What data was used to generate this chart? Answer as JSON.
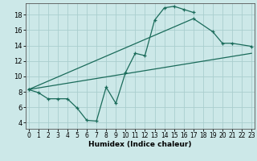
{
  "title": "",
  "xlabel": "Humidex (Indice chaleur)",
  "bg_color": "#cce8e8",
  "grid_color": "#aacece",
  "line_color": "#1a6b5a",
  "xticks": [
    0,
    1,
    2,
    3,
    4,
    5,
    6,
    7,
    8,
    9,
    10,
    11,
    12,
    13,
    14,
    15,
    16,
    17,
    18,
    19,
    20,
    21,
    22,
    23
  ],
  "yticks": [
    4,
    6,
    8,
    10,
    12,
    14,
    16,
    18
  ],
  "xlim": [
    -0.3,
    23.3
  ],
  "ylim": [
    3.2,
    19.5
  ],
  "line1_x": [
    0,
    1,
    2,
    3,
    4,
    5,
    6,
    7,
    8,
    9,
    10,
    11,
    12,
    13,
    14,
    15,
    16,
    17
  ],
  "line1_y": [
    8.3,
    7.9,
    7.1,
    7.1,
    7.1,
    5.9,
    4.3,
    4.2,
    8.6,
    6.5,
    10.5,
    13.0,
    12.7,
    17.3,
    18.9,
    19.1,
    18.7,
    18.3
  ],
  "line2_x": [
    0,
    17,
    19,
    20,
    21,
    23
  ],
  "line2_y": [
    8.3,
    17.5,
    15.8,
    14.3,
    14.3,
    13.9
  ],
  "line3_x": [
    0,
    23
  ],
  "line3_y": [
    8.3,
    13.0
  ]
}
